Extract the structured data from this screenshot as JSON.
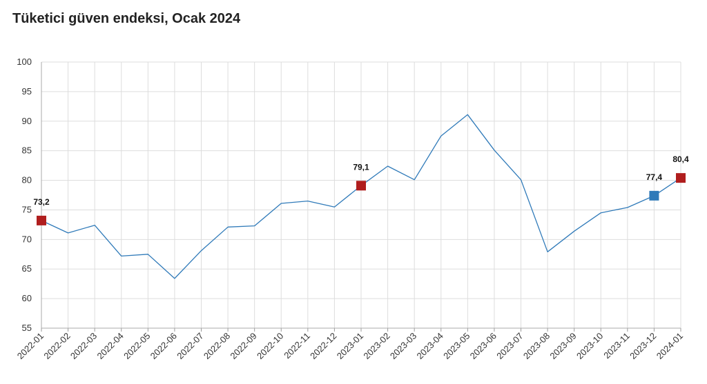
{
  "chart_data": {
    "type": "line",
    "title": "Tüketici güven endeksi, Ocak 2024",
    "categories": [
      "2022-01",
      "2022-02",
      "2022-03",
      "2022-04",
      "2022-05",
      "2022-06",
      "2022-07",
      "2022-08",
      "2022-09",
      "2022-10",
      "2022-11",
      "2022-12",
      "2023-01",
      "2023-02",
      "2023-03",
      "2023-04",
      "2023-05",
      "2023-06",
      "2023-07",
      "2023-08",
      "2023-09",
      "2023-10",
      "2023-11",
      "2023-12",
      "2024-01"
    ],
    "values": [
      73.2,
      71.1,
      72.4,
      67.2,
      67.5,
      63.4,
      68.1,
      72.1,
      72.3,
      76.1,
      76.5,
      75.5,
      79.1,
      82.4,
      80.1,
      87.5,
      91.1,
      85.1,
      80.1,
      67.9,
      71.4,
      74.5,
      75.4,
      77.4,
      80.4
    ],
    "ylim": [
      55,
      100
    ],
    "yticks": [
      55,
      60,
      65,
      70,
      75,
      80,
      85,
      90,
      95,
      100
    ],
    "grid": true,
    "line_color": "#2f7ab9",
    "highlight_color": "#b01e1e",
    "highlight_alt_color": "#2f7ab9",
    "highlights": [
      {
        "index": 0,
        "label": "73,2",
        "color": "#b01e1e"
      },
      {
        "index": 12,
        "label": "79,1",
        "color": "#b01e1e"
      },
      {
        "index": 23,
        "label": "77,4",
        "color": "#2f7ab9"
      },
      {
        "index": 24,
        "label": "80,4",
        "color": "#b01e1e"
      }
    ]
  }
}
